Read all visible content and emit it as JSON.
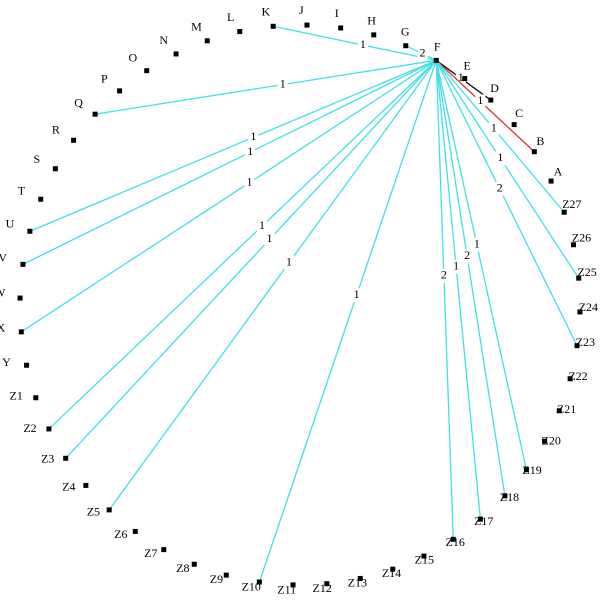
{
  "nodes": [
    {
      "label": "K"
    },
    {
      "label": "J"
    },
    {
      "label": "I"
    },
    {
      "label": "H"
    },
    {
      "label": "G"
    },
    {
      "label": "F"
    },
    {
      "label": "E"
    },
    {
      "label": "D"
    },
    {
      "label": "C"
    },
    {
      "label": "B"
    },
    {
      "label": "A"
    },
    {
      "label": "Z27"
    },
    {
      "label": "Z26"
    },
    {
      "label": "Z25"
    },
    {
      "label": "Z24"
    },
    {
      "label": "Z23"
    },
    {
      "label": "Z22"
    },
    {
      "label": "Z21"
    },
    {
      "label": "Z20"
    },
    {
      "label": "Z19"
    },
    {
      "label": "Z18"
    },
    {
      "label": "Z17"
    },
    {
      "label": "Z16"
    },
    {
      "label": "Z15"
    },
    {
      "label": "Z14"
    },
    {
      "label": "Z13"
    },
    {
      "label": "Z12"
    },
    {
      "label": "Z11"
    },
    {
      "label": "Z10"
    },
    {
      "label": "Z9"
    },
    {
      "label": "Z8"
    },
    {
      "label": "Z7"
    },
    {
      "label": "Z6"
    },
    {
      "label": "Z5"
    },
    {
      "label": "Z4"
    },
    {
      "label": "Z3"
    },
    {
      "label": "Z2"
    },
    {
      "label": "Z1"
    },
    {
      "label": "Y"
    },
    {
      "label": "X"
    },
    {
      "label": "W"
    },
    {
      "label": "V"
    },
    {
      "label": "U"
    },
    {
      "label": "T"
    },
    {
      "label": "S"
    },
    {
      "label": "R"
    },
    {
      "label": "Q"
    },
    {
      "label": "P"
    },
    {
      "label": "O"
    },
    {
      "label": "N"
    },
    {
      "label": "M"
    },
    {
      "label": "L"
    }
  ],
  "edges": [
    {
      "from": "F",
      "to": "K",
      "weight": 1,
      "color": "#40e0e8"
    },
    {
      "from": "F",
      "to": "G",
      "weight": 2,
      "color": "#40e0e8"
    },
    {
      "from": "F",
      "to": "D",
      "weight": 1,
      "color": "#000000"
    },
    {
      "from": "F",
      "to": "B",
      "weight": 1,
      "color": "#e03030"
    },
    {
      "from": "F",
      "to": "Z27",
      "weight": 1,
      "color": "#40e0e8"
    },
    {
      "from": "F",
      "to": "Z25",
      "weight": 1,
      "color": "#40e0e8"
    },
    {
      "from": "F",
      "to": "Z23",
      "weight": 2,
      "color": "#40e0e8"
    },
    {
      "from": "F",
      "to": "Z19",
      "weight": 1,
      "color": "#40e0e8"
    },
    {
      "from": "F",
      "to": "Z18",
      "weight": 2,
      "color": "#40e0e8"
    },
    {
      "from": "F",
      "to": "Z17",
      "weight": 1,
      "color": "#40e0e8"
    },
    {
      "from": "F",
      "to": "Z16",
      "weight": 2,
      "color": "#40e0e8"
    },
    {
      "from": "F",
      "to": "Z10",
      "weight": 1,
      "color": "#40e0e8"
    },
    {
      "from": "F",
      "to": "Z5",
      "weight": 1,
      "color": "#40e0e8"
    },
    {
      "from": "F",
      "to": "Z3",
      "weight": 1,
      "color": "#40e0e8"
    },
    {
      "from": "F",
      "to": "Z2",
      "weight": 1,
      "color": "#40e0e8"
    },
    {
      "from": "F",
      "to": "X",
      "weight": 1,
      "color": "#40e0e8"
    },
    {
      "from": "F",
      "to": "V",
      "weight": 1,
      "color": "#40e0e8"
    },
    {
      "from": "F",
      "to": "U",
      "weight": 1,
      "color": "#40e0e8"
    },
    {
      "from": "F",
      "to": "Q",
      "weight": 1,
      "color": "#40e0e8"
    }
  ]
}
